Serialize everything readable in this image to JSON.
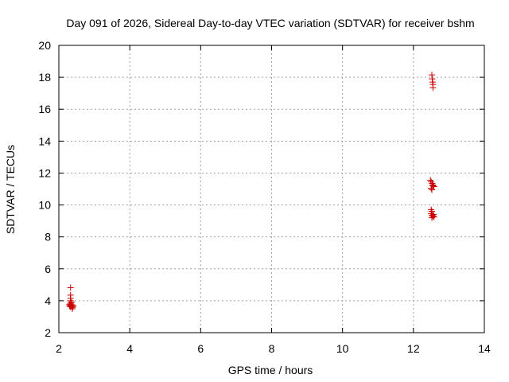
{
  "chart_data": {
    "type": "scatter",
    "title": "Day 091 of 2026, Sidereal Day-to-day VTEC variation (SDTVAR) for receiver bshm",
    "xlabel": "GPS time / hours",
    "ylabel": "SDTVAR / TECUs",
    "xlim": [
      2,
      14
    ],
    "ylim": [
      2,
      20
    ],
    "xticks": [
      2,
      4,
      6,
      8,
      10,
      12,
      14
    ],
    "yticks": [
      2,
      4,
      6,
      8,
      10,
      12,
      14,
      16,
      18,
      20
    ],
    "grid": true,
    "marker": "plus",
    "series": [
      {
        "name": "SDTVAR",
        "color": "#cc0000",
        "points": [
          [
            2.33,
            4.82
          ],
          [
            2.33,
            4.35
          ],
          [
            2.33,
            4.15
          ],
          [
            2.33,
            4.0
          ],
          [
            2.33,
            3.85
          ],
          [
            2.33,
            3.72
          ],
          [
            2.33,
            3.62
          ],
          [
            2.36,
            3.9
          ],
          [
            2.36,
            3.75
          ],
          [
            2.36,
            3.65
          ],
          [
            2.38,
            3.58
          ],
          [
            2.38,
            3.5
          ],
          [
            2.4,
            3.62
          ],
          [
            2.4,
            3.72
          ],
          [
            2.3,
            3.68
          ],
          [
            2.3,
            3.78
          ],
          [
            12.52,
            18.15
          ],
          [
            12.53,
            17.9
          ],
          [
            12.54,
            17.7
          ],
          [
            12.55,
            17.55
          ],
          [
            12.55,
            17.35
          ],
          [
            12.48,
            11.55
          ],
          [
            12.5,
            11.45
          ],
          [
            12.53,
            11.35
          ],
          [
            12.55,
            11.2
          ],
          [
            12.58,
            11.15
          ],
          [
            12.5,
            11.05
          ],
          [
            12.52,
            10.95
          ],
          [
            12.55,
            11.25
          ],
          [
            12.5,
            9.7
          ],
          [
            12.52,
            9.6
          ],
          [
            12.5,
            9.45
          ],
          [
            12.53,
            9.35
          ],
          [
            12.55,
            9.3
          ],
          [
            12.57,
            9.4
          ],
          [
            12.58,
            9.25
          ],
          [
            12.52,
            9.2
          ]
        ]
      }
    ]
  }
}
